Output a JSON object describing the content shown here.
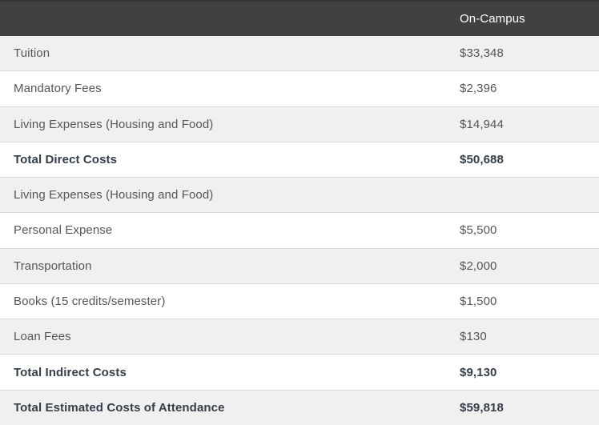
{
  "colors": {
    "header_bg": "#414141",
    "header_text": "#ffffff",
    "row_bg": "#ffffff",
    "row_alt_bg": "#f0f0f0",
    "row_border": "#d9d9d9",
    "text": "#54565a",
    "text_bold": "#333e48"
  },
  "table": {
    "column_header": "On-Campus",
    "rows": [
      {
        "label": "Tuition",
        "value": "$33,348"
      },
      {
        "label": "Mandatory Fees",
        "value": "$2,396"
      },
      {
        "label": "Living Expenses (Housing and Food)",
        "value": "$14,944"
      },
      {
        "label": "Total Direct Costs",
        "value": "$50,688"
      },
      {
        "label": "Living Expenses (Housing and Food)",
        "value": ""
      },
      {
        "label": "Personal Expense",
        "value": "$5,500"
      },
      {
        "label": "Transportation",
        "value": "$2,000"
      },
      {
        "label": "Books (15 credits/semester)",
        "value": "$1,500"
      },
      {
        "label": "Loan Fees",
        "value": "$130"
      },
      {
        "label": "Total Indirect Costs",
        "value": "$9,130"
      },
      {
        "label": "Total Estimated Costs of Attendance",
        "value": "$59,818"
      }
    ]
  },
  "chart_data": {
    "type": "table",
    "title": "",
    "columns": [
      "",
      "On-Campus"
    ],
    "rows": [
      [
        "Tuition",
        "$33,348"
      ],
      [
        "Mandatory Fees",
        "$2,396"
      ],
      [
        "Living Expenses (Housing and Food)",
        "$14,944"
      ],
      [
        "Total Direct Costs",
        "$50,688"
      ],
      [
        "Living Expenses (Housing and Food)",
        ""
      ],
      [
        "Personal Expense",
        "$5,500"
      ],
      [
        "Transportation",
        "$2,000"
      ],
      [
        "Books (15 credits/semester)",
        "$1,500"
      ],
      [
        "Loan Fees",
        "$130"
      ],
      [
        "Total Indirect Costs",
        "$9,130"
      ],
      [
        "Total Estimated Costs of Attendance",
        "$59,818"
      ]
    ]
  }
}
